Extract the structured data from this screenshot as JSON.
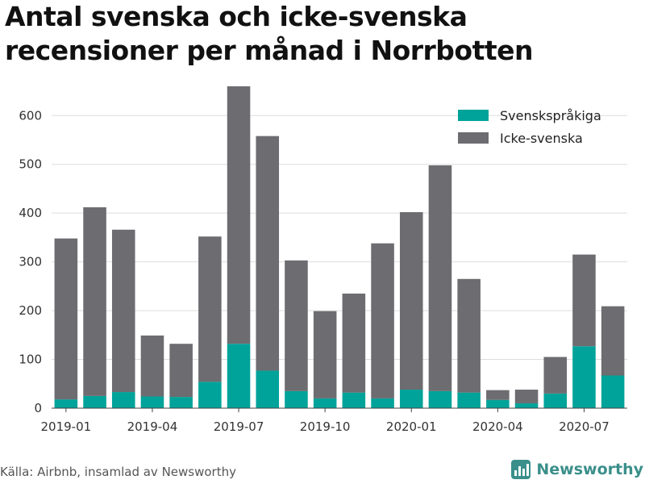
{
  "title": "Antal svenska och icke-svenska recensioner per månad i Norrbotten",
  "source": "Källa: Airbnb, insamlad av Newsworthy",
  "brand": {
    "name": "Newsworthy",
    "icon": "newsworthy-logo-icon",
    "color": "#3a8f8a"
  },
  "chart_data": {
    "type": "bar",
    "stacked": true,
    "categories": [
      "2019-01",
      "2019-02",
      "2019-03",
      "2019-04",
      "2019-05",
      "2019-06",
      "2019-07",
      "2019-08",
      "2019-09",
      "2019-10",
      "2019-11",
      "2019-12",
      "2020-01",
      "2020-02",
      "2020-03",
      "2020-04",
      "2020-05",
      "2020-06",
      "2020-07",
      "2020-08"
    ],
    "x_tick_labels": [
      "2019-01",
      "2019-04",
      "2019-07",
      "2019-10",
      "2020-01",
      "2020-04",
      "2020-07"
    ],
    "series": [
      {
        "name": "Svenskspråkiga",
        "color": "#00a39a",
        "values": [
          18,
          25,
          33,
          24,
          23,
          54,
          132,
          77,
          35,
          20,
          32,
          20,
          38,
          35,
          32,
          17,
          10,
          30,
          127,
          67
        ]
      },
      {
        "name": "Icke-svenska",
        "color": "#6d6c70",
        "values": [
          330,
          387,
          333,
          125,
          109,
          298,
          528,
          481,
          268,
          179,
          203,
          318,
          364,
          463,
          233,
          20,
          28,
          75,
          188,
          142
        ]
      }
    ],
    "ylim": [
      0,
      660
    ],
    "y_ticks": [
      0,
      100,
      200,
      300,
      400,
      500,
      600
    ],
    "xlabel": "",
    "ylabel": "",
    "grid": true,
    "legend_position": "top-right"
  }
}
